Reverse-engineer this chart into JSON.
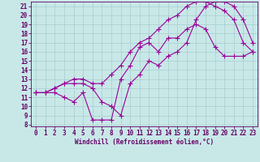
{
  "xlabel": "Windchill (Refroidissement éolien,°C)",
  "bg_color": "#c8e8e8",
  "line_color": "#990099",
  "grid_color": "#aacccc",
  "xlim": [
    -0.5,
    23.5
  ],
  "ylim": [
    7.8,
    21.5
  ],
  "xticks": [
    0,
    1,
    2,
    3,
    4,
    5,
    6,
    7,
    8,
    9,
    10,
    11,
    12,
    13,
    14,
    15,
    16,
    17,
    18,
    19,
    20,
    21,
    22,
    23
  ],
  "yticks": [
    8,
    9,
    10,
    11,
    12,
    13,
    14,
    15,
    16,
    17,
    18,
    19,
    20,
    21
  ],
  "curve1_x": [
    0,
    1,
    2,
    3,
    4,
    5,
    6,
    7,
    8,
    9,
    10,
    11,
    12,
    13,
    14,
    15,
    16,
    17,
    18,
    19,
    20,
    21,
    22,
    23
  ],
  "curve1_y": [
    11.5,
    11.5,
    11.5,
    11.0,
    10.5,
    11.5,
    8.5,
    8.5,
    8.5,
    13.0,
    14.5,
    16.5,
    17.0,
    16.0,
    17.5,
    17.5,
    18.5,
    19.0,
    18.5,
    16.5,
    15.5,
    15.5,
    15.5,
    16.0
  ],
  "curve2_x": [
    0,
    1,
    2,
    3,
    4,
    5,
    6,
    7,
    8,
    9,
    10,
    11,
    12,
    13,
    14,
    15,
    16,
    17,
    18,
    19,
    20,
    21,
    22,
    23
  ],
  "curve2_y": [
    11.5,
    11.5,
    12.0,
    12.5,
    13.0,
    13.0,
    12.5,
    12.5,
    13.5,
    14.5,
    16.0,
    17.0,
    17.5,
    18.5,
    19.5,
    20.0,
    21.0,
    21.5,
    21.5,
    21.0,
    20.5,
    19.5,
    17.0,
    16.0
  ],
  "curve3_x": [
    0,
    1,
    2,
    3,
    4,
    5,
    6,
    7,
    8,
    9,
    10,
    11,
    12,
    13,
    14,
    15,
    16,
    17,
    18,
    19,
    20,
    21,
    22,
    23
  ],
  "curve3_y": [
    11.5,
    11.5,
    12.0,
    12.5,
    12.5,
    12.5,
    12.0,
    10.5,
    10.0,
    9.0,
    12.5,
    13.5,
    15.0,
    14.5,
    15.5,
    16.0,
    17.0,
    19.5,
    21.0,
    21.5,
    21.5,
    21.0,
    19.5,
    17.0
  ],
  "tick_fontsize": 5.5,
  "xlabel_fontsize": 5.5,
  "marker_size": 2.5,
  "line_width": 0.8
}
